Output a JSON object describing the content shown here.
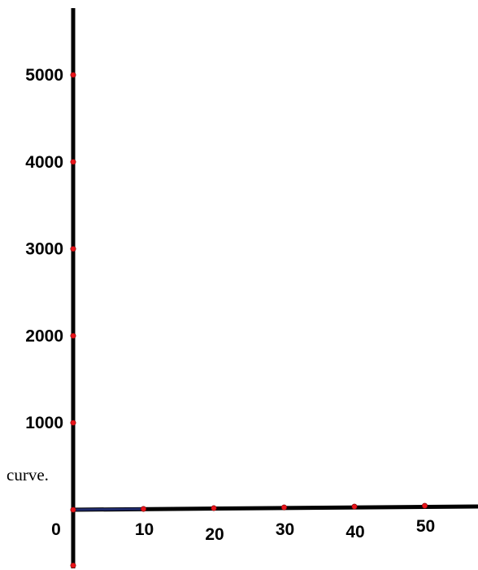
{
  "chart_data": {
    "type": "line",
    "title": "",
    "xlabel": "",
    "ylabel": "",
    "xlim": [
      0,
      57
    ],
    "ylim": [
      -650,
      5750
    ],
    "x_ticks": [
      {
        "value": 0,
        "label": "0"
      },
      {
        "value": 10,
        "label": "10"
      },
      {
        "value": 20,
        "label": "20"
      },
      {
        "value": 30,
        "label": "30"
      },
      {
        "value": 40,
        "label": "40"
      },
      {
        "value": 50,
        "label": "50"
      }
    ],
    "y_ticks": [
      {
        "value": 1000,
        "label": "1000"
      },
      {
        "value": 2000,
        "label": "2000"
      },
      {
        "value": 3000,
        "label": "3000"
      },
      {
        "value": 4000,
        "label": "4000"
      },
      {
        "value": 5000,
        "label": "5000"
      }
    ],
    "y_bottom_point": -650,
    "series": [
      {
        "x": [
          0,
          10
        ],
        "y": [
          0,
          0
        ],
        "color": "#1f2a6b"
      }
    ],
    "annotation": "curve.",
    "grid": false,
    "colors": {
      "axis": "#000000",
      "marker": "#e8141a",
      "curve": "#1f2a6b"
    }
  }
}
